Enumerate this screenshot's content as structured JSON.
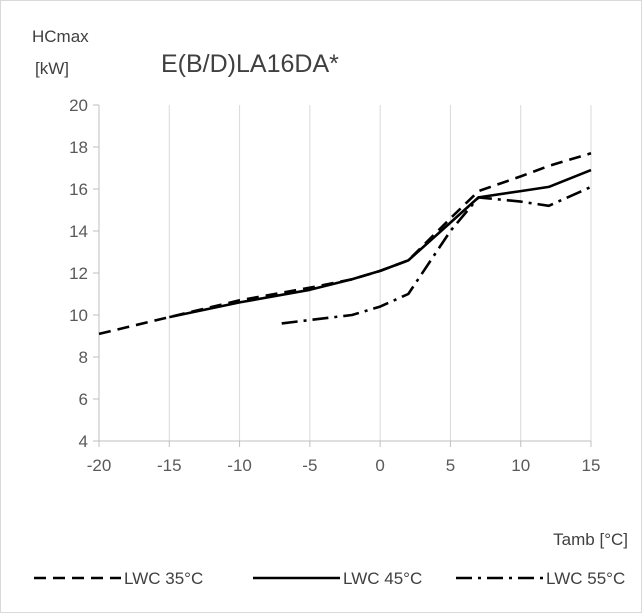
{
  "chart_data": {
    "type": "line",
    "title": "E(B/D)LA16DA*",
    "ylabel_line1": "HCmax",
    "ylabel_line2": "[kW]",
    "xlabel": "Tamb [°C]",
    "xlim": [
      -20,
      15
    ],
    "ylim": [
      4,
      20
    ],
    "xticks": [
      "-20",
      "-15",
      "-10",
      "-5",
      "0",
      "5",
      "10",
      "15"
    ],
    "yticks": [
      "4",
      "6",
      "8",
      "10",
      "12",
      "14",
      "16",
      "18",
      "20"
    ],
    "grid": "vertical",
    "legend_position": "bottom",
    "series": [
      {
        "name": "LWC 35°C",
        "dash": "dashed",
        "color": "#000000",
        "points": [
          [
            -20,
            9.1
          ],
          [
            -15,
            9.9
          ],
          [
            -10,
            10.7
          ],
          [
            -5,
            11.3
          ],
          [
            -2,
            11.7
          ],
          [
            0,
            12.1
          ],
          [
            2,
            12.6
          ],
          [
            5,
            14.6
          ],
          [
            7,
            15.9
          ],
          [
            10,
            16.6
          ],
          [
            12,
            17.1
          ],
          [
            15,
            17.7
          ]
        ]
      },
      {
        "name": "LWC 45°C",
        "dash": "solid",
        "color": "#000000",
        "points": [
          [
            -15,
            9.9
          ],
          [
            -10,
            10.6
          ],
          [
            -5,
            11.2
          ],
          [
            -2,
            11.7
          ],
          [
            0,
            12.1
          ],
          [
            2,
            12.6
          ],
          [
            5,
            14.4
          ],
          [
            7,
            15.6
          ],
          [
            10,
            15.9
          ],
          [
            12,
            16.1
          ],
          [
            15,
            16.9
          ]
        ]
      },
      {
        "name": "LWC 55°C",
        "dash": "dashdot",
        "color": "#000000",
        "points": [
          [
            -7,
            9.6
          ],
          [
            -2,
            10.0
          ],
          [
            0,
            10.4
          ],
          [
            2,
            11.0
          ],
          [
            5,
            14.0
          ],
          [
            7,
            15.6
          ],
          [
            10,
            15.4
          ],
          [
            12,
            15.2
          ],
          [
            15,
            16.1
          ]
        ]
      }
    ]
  }
}
